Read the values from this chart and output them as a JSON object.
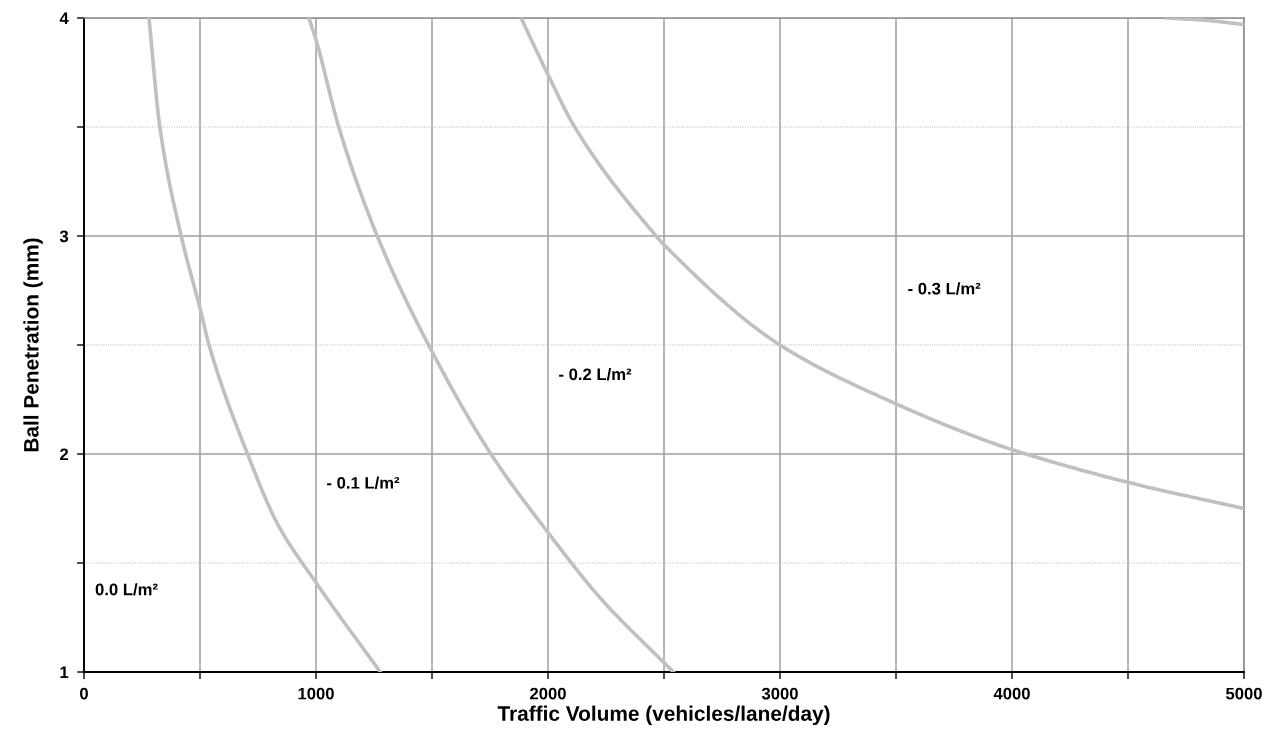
{
  "chart_data": {
    "type": "line",
    "xlabel": "Traffic Volume (vehicles/lane/day)",
    "ylabel": "Ball Penetration (mm)",
    "xlim": [
      0,
      5000
    ],
    "ylim": [
      1,
      4
    ],
    "xticks": [
      0,
      {
        "value": 500,
        "label": null
      },
      1000,
      {
        "value": 1500,
        "label": null
      },
      2000,
      {
        "value": 2500,
        "label": null
      },
      3000,
      {
        "value": 3500,
        "label": null
      },
      4000,
      {
        "value": 4500,
        "label": null
      },
      5000
    ],
    "yticks": [
      1,
      {
        "value": 1.5,
        "label": null
      },
      2,
      {
        "value": 2.5,
        "label": null
      },
      3,
      {
        "value": 3.5,
        "label": null
      },
      4
    ],
    "grid": true,
    "marker": "none",
    "line_style": "solid",
    "series": [
      {
        "color": "#c0c0c0",
        "x": [
          280,
          327,
          419,
          502,
          539,
          705,
          834,
          1000,
          1277
        ],
        "values": [
          4.0,
          3.5,
          3.0,
          2.66,
          2.5,
          2.0,
          1.68,
          1.41,
          1.0
        ]
      },
      {
        "color": "#c0c0c0",
        "x": [
          969,
          1000,
          1098,
          1264,
          1500,
          1754,
          2000,
          2225,
          2540
        ],
        "values": [
          4.0,
          3.9,
          3.5,
          3.0,
          2.47,
          2.0,
          1.64,
          1.34,
          1.0
        ]
      },
      {
        "color": "#c0c0c0",
        "x": [
          1884,
          2000,
          2115,
          2466,
          2500,
          3000,
          3500,
          3866,
          4000,
          4500,
          5000
        ],
        "values": [
          4.0,
          3.74,
          3.5,
          3.0,
          2.96,
          2.5,
          2.23,
          2.07,
          2.02,
          1.87,
          1.75
        ]
      },
      {
        "color": "#c0c0c0",
        "x": [
          4664,
          4830,
          5000
        ],
        "values": [
          4.0,
          3.99,
          3.97
        ]
      }
    ],
    "annotations": [
      "0.0 L/m²",
      "- 0.1 L/m²",
      "- 0.2 L/m²",
      "- 0.3 L/m²"
    ]
  }
}
